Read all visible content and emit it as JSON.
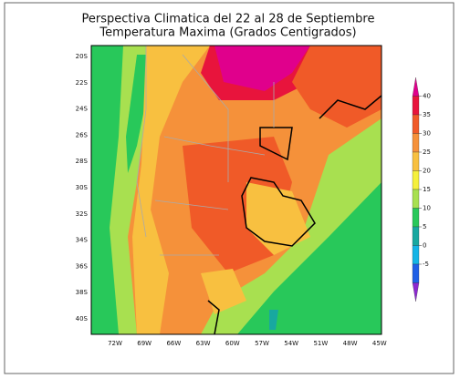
{
  "title": [
    "Perspectiva Climatica del 22 al 28 de Septiembre",
    "Temperatura Maxima (Grados Centigrados)"
  ],
  "latitude_labels": [
    "20S",
    "22S",
    "24S",
    "26S",
    "28S",
    "30S",
    "32S",
    "34S",
    "36S",
    "38S",
    "40S"
  ],
  "longitude_labels": [
    "72W",
    "69W",
    "66W",
    "63W",
    "60W",
    "57W",
    "54W",
    "51W",
    "48W",
    "45W"
  ],
  "colorbar": {
    "ticks": [
      40,
      35,
      30,
      25,
      20,
      15,
      10,
      5,
      0,
      -5
    ],
    "colors": [
      "#e0008c",
      "#e8143c",
      "#f05a28",
      "#f5913a",
      "#f8c040",
      "#f5f03c",
      "#a8e050",
      "#28c85a",
      "#18a8a0",
      "#14b4e6",
      "#1f5fe6",
      "#8c28d0"
    ]
  }
}
